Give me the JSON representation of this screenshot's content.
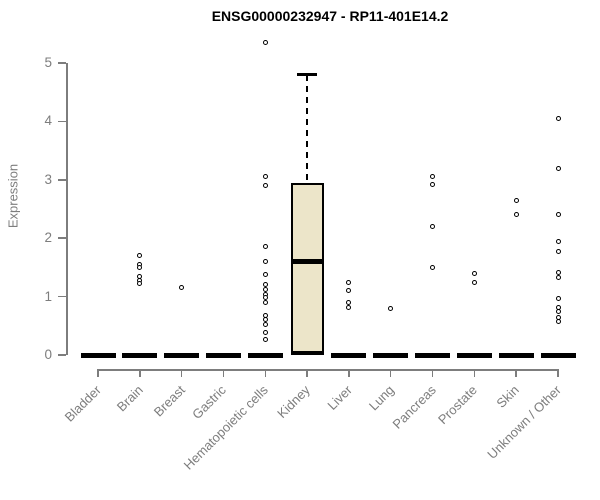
{
  "chart_data": {
    "type": "boxplot",
    "title": "ENSG00000232947 - RP11-401E14.2",
    "ylabel": "Expression",
    "xlabel": "",
    "ylim": [
      0,
      5.4
    ],
    "yticks": [
      0,
      1,
      2,
      3,
      4,
      5
    ],
    "grid": false,
    "legend": "none",
    "categories": [
      "Bladder",
      "Brain",
      "Breast",
      "Gastric",
      "Hematopoietic cells",
      "Kidney",
      "Liver",
      "Lung",
      "Pancreas",
      "Prostate",
      "Skin",
      "Unknown / Other"
    ],
    "series": [
      {
        "name": "Bladder",
        "q1": 0,
        "median": 0,
        "q3": 0,
        "whisker_low": 0,
        "whisker_high": 0,
        "outliers": []
      },
      {
        "name": "Brain",
        "q1": 0,
        "median": 0,
        "q3": 0,
        "whisker_low": 0,
        "whisker_high": 0,
        "outliers": [
          1.7,
          1.55,
          1.5,
          1.35,
          1.28,
          1.22
        ]
      },
      {
        "name": "Breast",
        "q1": 0,
        "median": 0,
        "q3": 0,
        "whisker_low": 0,
        "whisker_high": 0,
        "outliers": [
          1.15
        ]
      },
      {
        "name": "Gastric",
        "q1": 0,
        "median": 0,
        "q3": 0,
        "whisker_low": 0,
        "whisker_high": 0,
        "outliers": []
      },
      {
        "name": "Hematopoietic cells",
        "q1": 0,
        "median": 0,
        "q3": 0,
        "whisker_low": 0,
        "whisker_high": 0,
        "outliers": [
          5.35,
          3.05,
          2.9,
          1.85,
          1.6,
          1.38,
          1.2,
          1.12,
          1.04,
          0.98,
          0.9,
          0.68,
          0.6,
          0.52,
          0.38,
          0.26
        ]
      },
      {
        "name": "Kidney",
        "q1": 0,
        "median": 1.6,
        "q3": 2.95,
        "whisker_low": 0,
        "whisker_high": 4.8,
        "outliers": []
      },
      {
        "name": "Liver",
        "q1": 0,
        "median": 0,
        "q3": 0,
        "whisker_low": 0,
        "whisker_high": 0,
        "outliers": [
          1.25,
          1.1,
          0.9,
          0.82
        ]
      },
      {
        "name": "Lung",
        "q1": 0,
        "median": 0,
        "q3": 0,
        "whisker_low": 0,
        "whisker_high": 0,
        "outliers": [
          0.8
        ]
      },
      {
        "name": "Pancreas",
        "q1": 0,
        "median": 0,
        "q3": 0,
        "whisker_low": 0,
        "whisker_high": 0,
        "outliers": [
          3.05,
          2.92,
          2.2,
          1.5
        ]
      },
      {
        "name": "Prostate",
        "q1": 0,
        "median": 0,
        "q3": 0,
        "whisker_low": 0,
        "whisker_high": 0,
        "outliers": [
          1.4,
          1.25
        ]
      },
      {
        "name": "Skin",
        "q1": 0,
        "median": 0,
        "q3": 0,
        "whisker_low": 0,
        "whisker_high": 0,
        "outliers": [
          2.65,
          2.4
        ]
      },
      {
        "name": "Unknown / Other",
        "q1": 0,
        "median": 0,
        "q3": 0,
        "whisker_low": 0,
        "whisker_high": 0,
        "outliers": [
          4.05,
          3.2,
          2.4,
          1.95,
          1.78,
          1.42,
          1.33,
          0.97,
          0.82,
          0.75,
          0.65,
          0.58
        ]
      }
    ],
    "colors": {
      "box_fill": "#ECE5C9",
      "box_stroke": "#000000",
      "axis": "#7D7D7D",
      "title": "#000000"
    }
  }
}
